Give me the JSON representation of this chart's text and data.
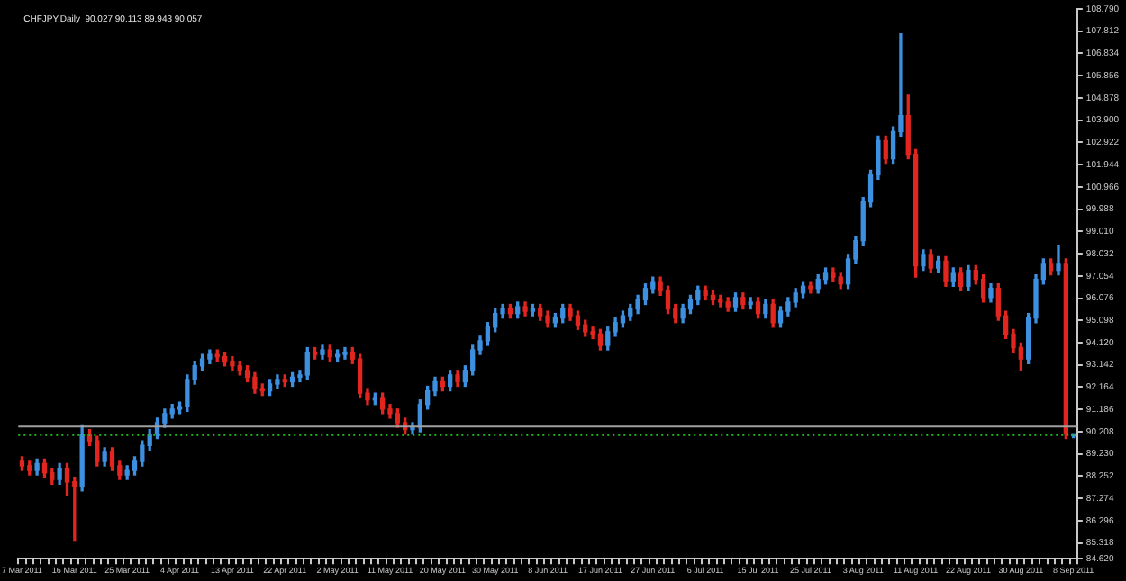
{
  "chart_data": {
    "type": "candlestick",
    "title": "CHFJPY,Daily  90.027 90.113 89.943 90.057",
    "categories": [
      "7 Mar 2011",
      null,
      null,
      null,
      null,
      null,
      null,
      "16 Mar 2011",
      null,
      null,
      null,
      null,
      null,
      null,
      "25 Mar 2011",
      null,
      null,
      null,
      null,
      null,
      null,
      "4 Apr 2011",
      null,
      null,
      null,
      null,
      null,
      null,
      "13 Apr 2011",
      null,
      null,
      null,
      null,
      null,
      null,
      "22 Apr 2011",
      null,
      null,
      null,
      null,
      null,
      null,
      "2 May 2011",
      null,
      null,
      null,
      null,
      null,
      null,
      "11 May 2011",
      null,
      null,
      null,
      null,
      null,
      null,
      "20 May 2011",
      null,
      null,
      null,
      null,
      null,
      null,
      "30 May 2011",
      null,
      null,
      null,
      null,
      null,
      null,
      "8 Jun 2011",
      null,
      null,
      null,
      null,
      null,
      null,
      "17 Jun 2011",
      null,
      null,
      null,
      null,
      null,
      null,
      "27 Jun 2011",
      null,
      null,
      null,
      null,
      null,
      null,
      "6 Jul 2011",
      null,
      null,
      null,
      null,
      null,
      null,
      "15 Jul 2011",
      null,
      null,
      null,
      null,
      null,
      null,
      "25 Jul 2011",
      null,
      null,
      null,
      null,
      null,
      null,
      "3 Aug 2011",
      null,
      null,
      null,
      null,
      null,
      null,
      "11 Aug 2011",
      null,
      null,
      null,
      null,
      null,
      null,
      "22 Aug 2011",
      null,
      null,
      null,
      null,
      null,
      null,
      "30 Aug 2011",
      null,
      null,
      null,
      null,
      null,
      null,
      "8 Sep 2011"
    ],
    "ohlc": [
      [
        88.9,
        89.1,
        88.5,
        88.7
      ],
      [
        88.7,
        88.9,
        88.3,
        88.5
      ],
      [
        88.5,
        89.0,
        88.3,
        88.8
      ],
      [
        88.8,
        89.0,
        88.2,
        88.4
      ],
      [
        88.4,
        88.6,
        87.9,
        88.1
      ],
      [
        88.1,
        88.8,
        87.9,
        88.6
      ],
      [
        88.6,
        88.8,
        87.4,
        88.0
      ],
      [
        88.0,
        88.2,
        85.4,
        87.8
      ],
      [
        87.8,
        90.5,
        87.6,
        90.1
      ],
      [
        90.1,
        90.3,
        89.6,
        89.8
      ],
      [
        89.8,
        90.0,
        88.7,
        88.9
      ],
      [
        88.9,
        89.5,
        88.7,
        89.3
      ],
      [
        89.3,
        89.5,
        88.5,
        88.7
      ],
      [
        88.7,
        88.9,
        88.1,
        88.3
      ],
      [
        88.3,
        88.7,
        88.1,
        88.5
      ],
      [
        88.5,
        89.1,
        88.3,
        88.9
      ],
      [
        88.9,
        89.8,
        88.7,
        89.6
      ],
      [
        89.6,
        90.3,
        89.4,
        90.1
      ],
      [
        90.1,
        90.8,
        89.9,
        90.6
      ],
      [
        90.6,
        91.2,
        90.4,
        91.0
      ],
      [
        91.0,
        91.4,
        90.8,
        91.2
      ],
      [
        91.2,
        91.5,
        91.0,
        91.3
      ],
      [
        91.3,
        92.7,
        91.1,
        92.5
      ],
      [
        92.5,
        93.3,
        92.3,
        93.1
      ],
      [
        93.1,
        93.6,
        92.9,
        93.4
      ],
      [
        93.4,
        93.8,
        93.2,
        93.6
      ],
      [
        93.6,
        93.8,
        93.3,
        93.5
      ],
      [
        93.5,
        93.7,
        93.1,
        93.3
      ],
      [
        93.3,
        93.5,
        92.9,
        93.1
      ],
      [
        93.1,
        93.3,
        92.7,
        92.9
      ],
      [
        92.9,
        93.1,
        92.4,
        92.6
      ],
      [
        92.6,
        92.8,
        91.9,
        92.1
      ],
      [
        92.1,
        92.3,
        91.8,
        92.0
      ],
      [
        92.0,
        92.5,
        91.8,
        92.3
      ],
      [
        92.3,
        92.7,
        92.1,
        92.5
      ],
      [
        92.5,
        92.7,
        92.2,
        92.4
      ],
      [
        92.4,
        92.8,
        92.2,
        92.6
      ],
      [
        92.6,
        92.9,
        92.4,
        92.7
      ],
      [
        92.7,
        93.9,
        92.5,
        93.7
      ],
      [
        93.7,
        93.9,
        93.4,
        93.6
      ],
      [
        93.6,
        94.0,
        93.4,
        93.8
      ],
      [
        93.8,
        94.0,
        93.3,
        93.5
      ],
      [
        93.5,
        93.8,
        93.3,
        93.6
      ],
      [
        93.6,
        93.9,
        93.4,
        93.7
      ],
      [
        93.7,
        93.9,
        93.2,
        93.4
      ],
      [
        93.4,
        93.6,
        91.7,
        91.9
      ],
      [
        91.9,
        92.1,
        91.4,
        91.6
      ],
      [
        91.6,
        91.9,
        91.4,
        91.7
      ],
      [
        91.7,
        91.9,
        91.0,
        91.2
      ],
      [
        91.2,
        91.4,
        90.8,
        91.0
      ],
      [
        91.0,
        91.2,
        90.4,
        90.6
      ],
      [
        90.6,
        90.8,
        90.1,
        90.3
      ],
      [
        90.3,
        90.6,
        90.1,
        90.4
      ],
      [
        90.4,
        91.6,
        90.2,
        91.4
      ],
      [
        91.4,
        92.2,
        91.2,
        92.0
      ],
      [
        92.0,
        92.6,
        91.8,
        92.4
      ],
      [
        92.4,
        92.6,
        92.0,
        92.2
      ],
      [
        92.2,
        92.9,
        92.0,
        92.7
      ],
      [
        92.7,
        92.9,
        92.2,
        92.4
      ],
      [
        92.4,
        93.1,
        92.2,
        92.9
      ],
      [
        92.9,
        94.0,
        92.7,
        93.8
      ],
      [
        93.8,
        94.4,
        93.6,
        94.2
      ],
      [
        94.2,
        95.0,
        94.0,
        94.8
      ],
      [
        94.8,
        95.6,
        94.6,
        95.4
      ],
      [
        95.4,
        95.8,
        95.2,
        95.6
      ],
      [
        95.6,
        95.8,
        95.2,
        95.4
      ],
      [
        95.4,
        95.9,
        95.2,
        95.7
      ],
      [
        95.7,
        95.9,
        95.3,
        95.5
      ],
      [
        95.5,
        95.8,
        95.3,
        95.6
      ],
      [
        95.6,
        95.8,
        95.1,
        95.3
      ],
      [
        95.3,
        95.5,
        94.8,
        95.0
      ],
      [
        95.0,
        95.4,
        94.8,
        95.2
      ],
      [
        95.2,
        95.8,
        95.0,
        95.6
      ],
      [
        95.6,
        95.8,
        95.1,
        95.3
      ],
      [
        95.3,
        95.5,
        94.7,
        94.9
      ],
      [
        94.9,
        95.1,
        94.4,
        94.6
      ],
      [
        94.6,
        94.8,
        94.3,
        94.5
      ],
      [
        94.5,
        94.7,
        93.8,
        94.0
      ],
      [
        94.0,
        94.8,
        93.8,
        94.6
      ],
      [
        94.6,
        95.2,
        94.4,
        95.0
      ],
      [
        95.0,
        95.5,
        94.8,
        95.3
      ],
      [
        95.3,
        95.8,
        95.1,
        95.6
      ],
      [
        95.6,
        96.2,
        95.4,
        96.0
      ],
      [
        96.0,
        96.7,
        95.8,
        96.5
      ],
      [
        96.5,
        97.0,
        96.3,
        96.8
      ],
      [
        96.8,
        97.0,
        96.2,
        96.4
      ],
      [
        96.4,
        96.6,
        95.4,
        95.6
      ],
      [
        95.6,
        95.8,
        95.0,
        95.2
      ],
      [
        95.2,
        95.8,
        95.0,
        95.6
      ],
      [
        95.6,
        96.2,
        95.4,
        96.0
      ],
      [
        96.0,
        96.6,
        95.8,
        96.4
      ],
      [
        96.4,
        96.6,
        96.0,
        96.2
      ],
      [
        96.2,
        96.4,
        95.8,
        96.0
      ],
      [
        96.0,
        96.2,
        95.7,
        95.9
      ],
      [
        95.9,
        96.1,
        95.5,
        95.7
      ],
      [
        95.7,
        96.3,
        95.5,
        96.1
      ],
      [
        96.1,
        96.3,
        95.6,
        95.8
      ],
      [
        95.8,
        96.1,
        95.6,
        95.9
      ],
      [
        95.9,
        96.1,
        95.2,
        95.4
      ],
      [
        95.4,
        96.0,
        95.2,
        95.8
      ],
      [
        95.8,
        96.0,
        94.8,
        95.0
      ],
      [
        95.0,
        95.7,
        94.8,
        95.5
      ],
      [
        95.5,
        96.1,
        95.3,
        95.9
      ],
      [
        95.9,
        96.5,
        95.7,
        96.3
      ],
      [
        96.3,
        96.8,
        96.1,
        96.6
      ],
      [
        96.6,
        96.8,
        96.3,
        96.5
      ],
      [
        96.5,
        97.1,
        96.3,
        96.9
      ],
      [
        96.9,
        97.4,
        96.7,
        97.2
      ],
      [
        97.2,
        97.4,
        96.8,
        97.0
      ],
      [
        97.0,
        97.2,
        96.5,
        96.7
      ],
      [
        96.7,
        98.0,
        96.5,
        97.8
      ],
      [
        97.8,
        98.8,
        97.6,
        98.6
      ],
      [
        98.6,
        100.5,
        98.4,
        100.3
      ],
      [
        100.3,
        101.7,
        100.1,
        101.5
      ],
      [
        101.5,
        103.2,
        101.3,
        103.0
      ],
      [
        103.0,
        103.2,
        102.0,
        102.2
      ],
      [
        102.2,
        103.6,
        102.0,
        103.4
      ],
      [
        103.4,
        107.7,
        103.2,
        104.1
      ],
      [
        104.1,
        105.0,
        102.2,
        102.4
      ],
      [
        102.4,
        102.6,
        97.0,
        97.5
      ],
      [
        97.5,
        98.2,
        97.3,
        98.0
      ],
      [
        98.0,
        98.2,
        97.2,
        97.4
      ],
      [
        97.4,
        97.9,
        97.2,
        97.7
      ],
      [
        97.7,
        97.9,
        96.6,
        96.8
      ],
      [
        96.8,
        97.4,
        96.6,
        97.2
      ],
      [
        97.2,
        97.4,
        96.4,
        96.6
      ],
      [
        96.6,
        97.5,
        96.4,
        97.3
      ],
      [
        97.3,
        97.5,
        96.7,
        96.9
      ],
      [
        96.9,
        97.1,
        95.9,
        96.1
      ],
      [
        96.1,
        96.7,
        95.9,
        96.5
      ],
      [
        96.5,
        96.7,
        95.1,
        95.3
      ],
      [
        95.3,
        95.5,
        94.3,
        94.5
      ],
      [
        94.5,
        94.7,
        93.7,
        93.9
      ],
      [
        93.9,
        94.1,
        92.9,
        93.4
      ],
      [
        93.4,
        95.4,
        93.2,
        95.2
      ],
      [
        95.2,
        97.1,
        95.0,
        96.9
      ],
      [
        96.9,
        97.8,
        96.7,
        97.6
      ],
      [
        97.6,
        97.8,
        97.1,
        97.3
      ],
      [
        97.3,
        98.4,
        97.1,
        97.6
      ],
      [
        97.6,
        97.8,
        89.9,
        90.1
      ],
      [
        90.027,
        90.113,
        89.943,
        90.057
      ]
    ],
    "colors": [
      "#e2261f",
      "#e2261f",
      "#3d8fe0",
      "#e2261f",
      "#e2261f",
      "#3d8fe0",
      "#e2261f",
      "#e2261f",
      "#3d8fe0",
      "#e2261f",
      "#e2261f",
      "#3d8fe0",
      "#e2261f",
      "#e2261f",
      "#3d8fe0",
      "#3d8fe0",
      "#3d8fe0",
      "#3d8fe0",
      "#3d8fe0",
      "#3d8fe0",
      "#3d8fe0",
      "#3d8fe0",
      "#3d8fe0",
      "#3d8fe0",
      "#3d8fe0",
      "#3d8fe0",
      "#e2261f",
      "#e2261f",
      "#e2261f",
      "#e2261f",
      "#e2261f",
      "#e2261f",
      "#e2261f",
      "#3d8fe0",
      "#3d8fe0",
      "#e2261f",
      "#3d8fe0",
      "#3d8fe0",
      "#3d8fe0",
      "#e2261f",
      "#3d8fe0",
      "#e2261f",
      "#3d8fe0",
      "#3d8fe0",
      "#e2261f",
      "#e2261f",
      "#e2261f",
      "#3d8fe0",
      "#e2261f",
      "#e2261f",
      "#e2261f",
      "#e2261f",
      "#3d8fe0",
      "#3d8fe0",
      "#3d8fe0",
      "#3d8fe0",
      "#e2261f",
      "#3d8fe0",
      "#e2261f",
      "#3d8fe0",
      "#3d8fe0",
      "#3d8fe0",
      "#3d8fe0",
      "#3d8fe0",
      "#3d8fe0",
      "#e2261f",
      "#3d8fe0",
      "#e2261f",
      "#3d8fe0",
      "#e2261f",
      "#e2261f",
      "#3d8fe0",
      "#3d8fe0",
      "#e2261f",
      "#e2261f",
      "#e2261f",
      "#e2261f",
      "#e2261f",
      "#3d8fe0",
      "#3d8fe0",
      "#3d8fe0",
      "#3d8fe0",
      "#3d8fe0",
      "#3d8fe0",
      "#3d8fe0",
      "#e2261f",
      "#e2261f",
      "#e2261f",
      "#3d8fe0",
      "#3d8fe0",
      "#3d8fe0",
      "#e2261f",
      "#e2261f",
      "#e2261f",
      "#e2261f",
      "#3d8fe0",
      "#e2261f",
      "#3d8fe0",
      "#e2261f",
      "#3d8fe0",
      "#e2261f",
      "#3d8fe0",
      "#3d8fe0",
      "#3d8fe0",
      "#3d8fe0",
      "#e2261f",
      "#3d8fe0",
      "#3d8fe0",
      "#e2261f",
      "#e2261f",
      "#3d8fe0",
      "#3d8fe0",
      "#3d8fe0",
      "#3d8fe0",
      "#3d8fe0",
      "#e2261f",
      "#3d8fe0",
      "#3d8fe0",
      "#e2261f",
      "#e2261f",
      "#3d8fe0",
      "#e2261f",
      "#3d8fe0",
      "#e2261f",
      "#3d8fe0",
      "#e2261f",
      "#3d8fe0",
      "#e2261f",
      "#e2261f",
      "#3d8fe0",
      "#e2261f",
      "#e2261f",
      "#e2261f",
      "#e2261f",
      "#3d8fe0",
      "#3d8fe0",
      "#3d8fe0",
      "#e2261f",
      "#3d8fe0",
      "#e2261f",
      "#3d8fe0"
    ],
    "ylim": [
      84.62,
      108.79
    ],
    "yticks": [
      {
        "value": 108.79,
        "label": "108.790"
      },
      {
        "value": 107.812,
        "label": "107.812"
      },
      {
        "value": 106.834,
        "label": "106.834"
      },
      {
        "value": 105.856,
        "label": "105.856"
      },
      {
        "value": 104.878,
        "label": "104.878"
      },
      {
        "value": 103.9,
        "label": "103.900"
      },
      {
        "value": 102.922,
        "label": "102.922"
      },
      {
        "value": 101.944,
        "label": "101.944"
      },
      {
        "value": 100.966,
        "label": "100.966"
      },
      {
        "value": 99.988,
        "label": "99.988"
      },
      {
        "value": 99.01,
        "label": "99.010"
      },
      {
        "value": 98.032,
        "label": "98.032"
      },
      {
        "value": 97.054,
        "label": "97.054"
      },
      {
        "value": 96.076,
        "label": "96.076"
      },
      {
        "value": 95.098,
        "label": "95.098"
      },
      {
        "value": 94.12,
        "label": "94.120"
      },
      {
        "value": 93.142,
        "label": "93.142"
      },
      {
        "value": 92.164,
        "label": "92.164"
      },
      {
        "value": 91.186,
        "label": "91.186"
      },
      {
        "value": 90.208,
        "label": "90.208"
      },
      {
        "value": 89.23,
        "label": "89.230"
      },
      {
        "value": 88.252,
        "label": "88.252"
      },
      {
        "value": 87.274,
        "label": "87.274"
      },
      {
        "value": 86.296,
        "label": "86.296"
      },
      {
        "value": 85.318,
        "label": "85.318"
      },
      {
        "value": 84.62,
        "label": "84.620"
      }
    ],
    "ref_lines": [
      {
        "axis": "y",
        "value": 90.43,
        "color": "#a0a0a0",
        "line_style": "solid"
      },
      {
        "axis": "y",
        "value": 90.057,
        "color": "#22c022",
        "line_style": "dotted"
      }
    ],
    "grid": false,
    "legend": false
  }
}
